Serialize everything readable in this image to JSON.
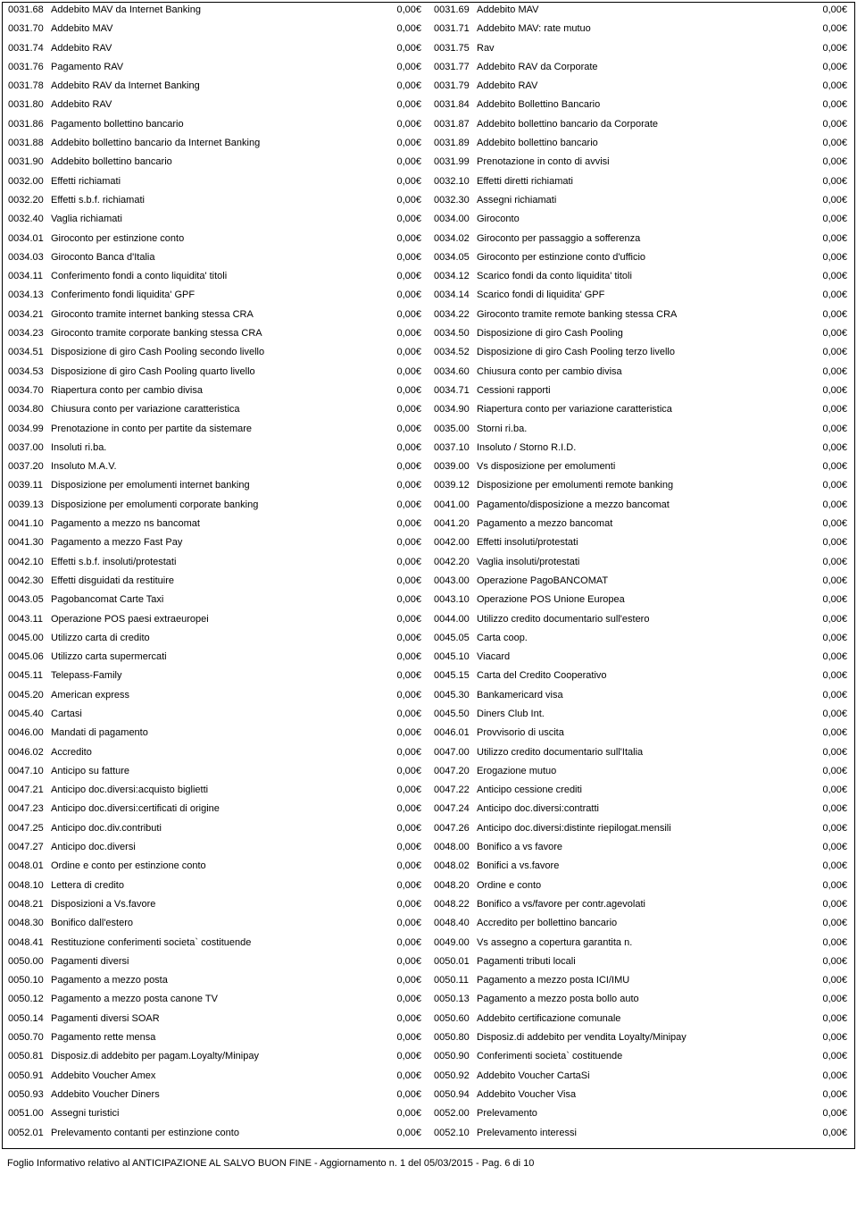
{
  "left": [
    {
      "code": "0031.68",
      "desc": "Addebito MAV da Internet Banking",
      "amt": "0,00€"
    },
    {
      "code": "0031.70",
      "desc": "Addebito MAV",
      "amt": "0,00€"
    },
    {
      "code": "0031.74",
      "desc": "Addebito RAV",
      "amt": "0,00€"
    },
    {
      "code": "0031.76",
      "desc": "Pagamento RAV",
      "amt": "0,00€"
    },
    {
      "code": "0031.78",
      "desc": "Addebito RAV da Internet Banking",
      "amt": "0,00€"
    },
    {
      "code": "0031.80",
      "desc": "Addebito RAV",
      "amt": "0,00€"
    },
    {
      "code": "0031.86",
      "desc": "Pagamento bollettino bancario",
      "amt": "0,00€"
    },
    {
      "code": "0031.88",
      "desc": "Addebito bollettino bancario da Internet Banking",
      "amt": "0,00€"
    },
    {
      "code": "0031.90",
      "desc": "Addebito bollettino bancario",
      "amt": "0,00€"
    },
    {
      "code": "0032.00",
      "desc": "Effetti richiamati",
      "amt": "0,00€"
    },
    {
      "code": "0032.20",
      "desc": "Effetti s.b.f. richiamati",
      "amt": "0,00€"
    },
    {
      "code": "0032.40",
      "desc": "Vaglia richiamati",
      "amt": "0,00€"
    },
    {
      "code": "0034.01",
      "desc": "Giroconto per estinzione conto",
      "amt": "0,00€"
    },
    {
      "code": "0034.03",
      "desc": "Giroconto Banca d'Italia",
      "amt": "0,00€"
    },
    {
      "code": "0034.11",
      "desc": "Conferimento fondi a conto liquidita' titoli",
      "amt": "0,00€"
    },
    {
      "code": "0034.13",
      "desc": "Conferimento fondi liquidita' GPF",
      "amt": "0,00€"
    },
    {
      "code": "0034.21",
      "desc": "Giroconto tramite internet banking stessa CRA",
      "amt": "0,00€"
    },
    {
      "code": "0034.23",
      "desc": "Giroconto tramite corporate banking stessa CRA",
      "amt": "0,00€"
    },
    {
      "code": "0034.51",
      "desc": "Disposizione di giro Cash Pooling secondo livello",
      "amt": "0,00€"
    },
    {
      "code": "0034.53",
      "desc": "Disposizione di giro Cash Pooling quarto livello",
      "amt": "0,00€"
    },
    {
      "code": "0034.70",
      "desc": "Riapertura conto per cambio divisa",
      "amt": "0,00€"
    },
    {
      "code": "0034.80",
      "desc": "Chiusura conto per variazione caratteristica",
      "amt": "0,00€"
    },
    {
      "code": "0034.99",
      "desc": "Prenotazione in conto per partite da sistemare",
      "amt": "0,00€"
    },
    {
      "code": "0037.00",
      "desc": "Insoluti ri.ba.",
      "amt": "0,00€"
    },
    {
      "code": "0037.20",
      "desc": "Insoluto M.A.V.",
      "amt": "0,00€"
    },
    {
      "code": "0039.11",
      "desc": "Disposizione per emolumenti internet banking",
      "amt": "0,00€"
    },
    {
      "code": "0039.13",
      "desc": "Disposizione per emolumenti corporate banking",
      "amt": "0,00€"
    },
    {
      "code": "0041.10",
      "desc": "Pagamento a mezzo ns bancomat",
      "amt": "0,00€"
    },
    {
      "code": "0041.30",
      "desc": "Pagamento a mezzo Fast Pay",
      "amt": "0,00€"
    },
    {
      "code": "0042.10",
      "desc": "Effetti s.b.f. insoluti/protestati",
      "amt": "0,00€"
    },
    {
      "code": "0042.30",
      "desc": "Effetti disguidati da restituire",
      "amt": "0,00€"
    },
    {
      "code": "0043.05",
      "desc": "Pagobancomat Carte Taxi",
      "amt": "0,00€"
    },
    {
      "code": "0043.11",
      "desc": "Operazione POS paesi extraeuropei",
      "amt": "0,00€"
    },
    {
      "code": "0045.00",
      "desc": "Utilizzo carta di credito",
      "amt": "0,00€"
    },
    {
      "code": "0045.06",
      "desc": "Utilizzo carta supermercati",
      "amt": "0,00€"
    },
    {
      "code": "0045.11",
      "desc": "Telepass-Family",
      "amt": "0,00€"
    },
    {
      "code": "0045.20",
      "desc": "American express",
      "amt": "0,00€"
    },
    {
      "code": "0045.40",
      "desc": "Cartasi",
      "amt": "0,00€"
    },
    {
      "code": "0046.00",
      "desc": "Mandati di pagamento",
      "amt": "0,00€"
    },
    {
      "code": "0046.02",
      "desc": "Accredito",
      "amt": "0,00€"
    },
    {
      "code": "0047.10",
      "desc": "Anticipo su fatture",
      "amt": "0,00€"
    },
    {
      "code": "0047.21",
      "desc": "Anticipo doc.diversi:acquisto biglietti",
      "amt": "0,00€"
    },
    {
      "code": "0047.23",
      "desc": "Anticipo doc.diversi:certificati di origine",
      "amt": "0,00€"
    },
    {
      "code": "0047.25",
      "desc": "Anticipo doc.div.contributi",
      "amt": "0,00€"
    },
    {
      "code": "0047.27",
      "desc": "Anticipo doc.diversi",
      "amt": "0,00€"
    },
    {
      "code": "0048.01",
      "desc": "Ordine e conto per estinzione conto",
      "amt": "0,00€"
    },
    {
      "code": "0048.10",
      "desc": "Lettera di credito",
      "amt": "0,00€"
    },
    {
      "code": "0048.21",
      "desc": "Disposizioni a Vs.favore",
      "amt": "0,00€"
    },
    {
      "code": "0048.30",
      "desc": "Bonifico dall'estero",
      "amt": "0,00€"
    },
    {
      "code": "0048.41",
      "desc": "Restituzione conferimenti societa` costituende",
      "amt": "0,00€"
    },
    {
      "code": "0050.00",
      "desc": "Pagamenti diversi",
      "amt": "0,00€"
    },
    {
      "code": "0050.10",
      "desc": "Pagamento a mezzo posta",
      "amt": "0,00€"
    },
    {
      "code": "0050.12",
      "desc": "Pagamento a mezzo posta canone TV",
      "amt": "0,00€"
    },
    {
      "code": "0050.14",
      "desc": "Pagamenti diversi SOAR",
      "amt": "0,00€"
    },
    {
      "code": "0050.70",
      "desc": "Pagamento rette mensa",
      "amt": "0,00€"
    },
    {
      "code": "0050.81",
      "desc": "Disposiz.di addebito per pagam.Loyalty/Minipay",
      "amt": "0,00€"
    },
    {
      "code": "0050.91",
      "desc": "Addebito Voucher Amex",
      "amt": "0,00€"
    },
    {
      "code": "0050.93",
      "desc": "Addebito Voucher Diners",
      "amt": "0,00€"
    },
    {
      "code": "0051.00",
      "desc": "Assegni turistici",
      "amt": "0,00€"
    },
    {
      "code": "0052.01",
      "desc": "Prelevamento contanti per estinzione conto",
      "amt": "0,00€"
    }
  ],
  "right": [
    {
      "code": "0031.69",
      "desc": "Addebito MAV",
      "amt": "0,00€"
    },
    {
      "code": "0031.71",
      "desc": "Addebito MAV: rate mutuo",
      "amt": "0,00€"
    },
    {
      "code": "0031.75",
      "desc": "Rav",
      "amt": "0,00€"
    },
    {
      "code": "0031.77",
      "desc": "Addebito RAV da Corporate",
      "amt": "0,00€"
    },
    {
      "code": "0031.79",
      "desc": "Addebito RAV",
      "amt": "0,00€"
    },
    {
      "code": "0031.84",
      "desc": "Addebito Bollettino Bancario",
      "amt": "0,00€"
    },
    {
      "code": "0031.87",
      "desc": "Addebito bollettino bancario da Corporate",
      "amt": "0,00€"
    },
    {
      "code": "0031.89",
      "desc": "Addebito bollettino bancario",
      "amt": "0,00€"
    },
    {
      "code": "0031.99",
      "desc": "Prenotazione in conto di avvisi",
      "amt": "0,00€"
    },
    {
      "code": "0032.10",
      "desc": "Effetti diretti richiamati",
      "amt": "0,00€"
    },
    {
      "code": "0032.30",
      "desc": "Assegni richiamati",
      "amt": "0,00€"
    },
    {
      "code": "0034.00",
      "desc": "Giroconto",
      "amt": "0,00€"
    },
    {
      "code": "0034.02",
      "desc": "Giroconto per passaggio a sofferenza",
      "amt": "0,00€"
    },
    {
      "code": "0034.05",
      "desc": "Giroconto per estinzione conto d'ufficio",
      "amt": "0,00€"
    },
    {
      "code": "0034.12",
      "desc": "Scarico fondi da conto liquidita' titoli",
      "amt": "0,00€"
    },
    {
      "code": "0034.14",
      "desc": "Scarico fondi di liquidita' GPF",
      "amt": "0,00€"
    },
    {
      "code": "0034.22",
      "desc": "Giroconto tramite remote banking stessa CRA",
      "amt": "0,00€"
    },
    {
      "code": "0034.50",
      "desc": "Disposizione di giro Cash Pooling",
      "amt": "0,00€"
    },
    {
      "code": "0034.52",
      "desc": "Disposizione di giro Cash Pooling terzo livello",
      "amt": "0,00€"
    },
    {
      "code": "0034.60",
      "desc": "Chiusura conto per cambio divisa",
      "amt": "0,00€"
    },
    {
      "code": "0034.71",
      "desc": "Cessioni rapporti",
      "amt": "0,00€"
    },
    {
      "code": "0034.90",
      "desc": "Riapertura conto per variazione caratteristica",
      "amt": "0,00€"
    },
    {
      "code": "0035.00",
      "desc": "Storni ri.ba.",
      "amt": "0,00€"
    },
    {
      "code": "0037.10",
      "desc": "Insoluto / Storno R.I.D.",
      "amt": "0,00€"
    },
    {
      "code": "0039.00",
      "desc": "Vs disposizione per emolumenti",
      "amt": "0,00€"
    },
    {
      "code": "0039.12",
      "desc": "Disposizione per emolumenti remote banking",
      "amt": "0,00€"
    },
    {
      "code": "0041.00",
      "desc": "Pagamento/disposizione a mezzo bancomat",
      "amt": "0,00€"
    },
    {
      "code": "0041.20",
      "desc": "Pagamento a mezzo bancomat",
      "amt": "0,00€"
    },
    {
      "code": "0042.00",
      "desc": "Effetti insoluti/protestati",
      "amt": "0,00€"
    },
    {
      "code": "0042.20",
      "desc": "Vaglia  insoluti/protestati",
      "amt": "0,00€"
    },
    {
      "code": "0043.00",
      "desc": "Operazione PagoBANCOMAT",
      "amt": "0,00€"
    },
    {
      "code": "0043.10",
      "desc": "Operazione POS Unione Europea",
      "amt": "0,00€"
    },
    {
      "code": "0044.00",
      "desc": "Utilizzo credito documentario sull'estero",
      "amt": "0,00€"
    },
    {
      "code": "0045.05",
      "desc": "Carta coop.",
      "amt": "0,00€"
    },
    {
      "code": "0045.10",
      "desc": "Viacard",
      "amt": "0,00€"
    },
    {
      "code": "0045.15",
      "desc": "Carta del Credito Cooperativo",
      "amt": "0,00€"
    },
    {
      "code": "0045.30",
      "desc": "Bankamericard visa",
      "amt": "0,00€"
    },
    {
      "code": "0045.50",
      "desc": "Diners Club Int.",
      "amt": "0,00€"
    },
    {
      "code": "0046.01",
      "desc": "Provvisorio di uscita",
      "amt": "0,00€"
    },
    {
      "code": "0047.00",
      "desc": "Utilizzo credito documentario sull'Italia",
      "amt": "0,00€"
    },
    {
      "code": "0047.20",
      "desc": "Erogazione mutuo",
      "amt": "0,00€"
    },
    {
      "code": "0047.22",
      "desc": "Anticipo cessione crediti",
      "amt": "0,00€"
    },
    {
      "code": "0047.24",
      "desc": "Anticipo doc.diversi:contratti",
      "amt": "0,00€"
    },
    {
      "code": "0047.26",
      "desc": "Anticipo doc.diversi:distinte riepilogat.mensili",
      "amt": "0,00€"
    },
    {
      "code": "0048.00",
      "desc": "Bonifico a vs favore",
      "amt": "0,00€"
    },
    {
      "code": "0048.02",
      "desc": "Bonifici a vs.favore",
      "amt": "0,00€"
    },
    {
      "code": "0048.20",
      "desc": "Ordine e conto",
      "amt": "0,00€"
    },
    {
      "code": "0048.22",
      "desc": "Bonifico a vs/favore per contr.agevolati",
      "amt": "0,00€"
    },
    {
      "code": "0048.40",
      "desc": "Accredito per bollettino bancario",
      "amt": "0,00€"
    },
    {
      "code": "0049.00",
      "desc": "Vs assegno a copertura garantita n.",
      "amt": "0,00€"
    },
    {
      "code": "0050.01",
      "desc": "Pagamenti tributi locali",
      "amt": "0,00€"
    },
    {
      "code": "0050.11",
      "desc": "Pagamento a mezzo posta ICI/IMU",
      "amt": "0,00€"
    },
    {
      "code": "0050.13",
      "desc": "Pagamento a mezzo posta bollo auto",
      "amt": "0,00€"
    },
    {
      "code": "0050.60",
      "desc": "Addebito certificazione comunale",
      "amt": "0,00€"
    },
    {
      "code": "0050.80",
      "desc": "Disposiz.di addebito per vendita Loyalty/Minipay",
      "amt": "0,00€"
    },
    {
      "code": "0050.90",
      "desc": "Conferimenti societa` costituende",
      "amt": "0,00€"
    },
    {
      "code": "0050.92",
      "desc": "Addebito Voucher CartaSi",
      "amt": "0,00€"
    },
    {
      "code": "0050.94",
      "desc": "Addebito Voucher Visa",
      "amt": "0,00€"
    },
    {
      "code": "0052.00",
      "desc": "Prelevamento",
      "amt": "0,00€"
    },
    {
      "code": "0052.10",
      "desc": "Prelevamento interessi",
      "amt": "0,00€"
    }
  ],
  "footer": "Foglio Informativo relativo al  ANTICIPAZIONE AL SALVO BUON FINE - Aggiornamento n. 1 del 05/03/2015 - Pag. 6 di 10"
}
